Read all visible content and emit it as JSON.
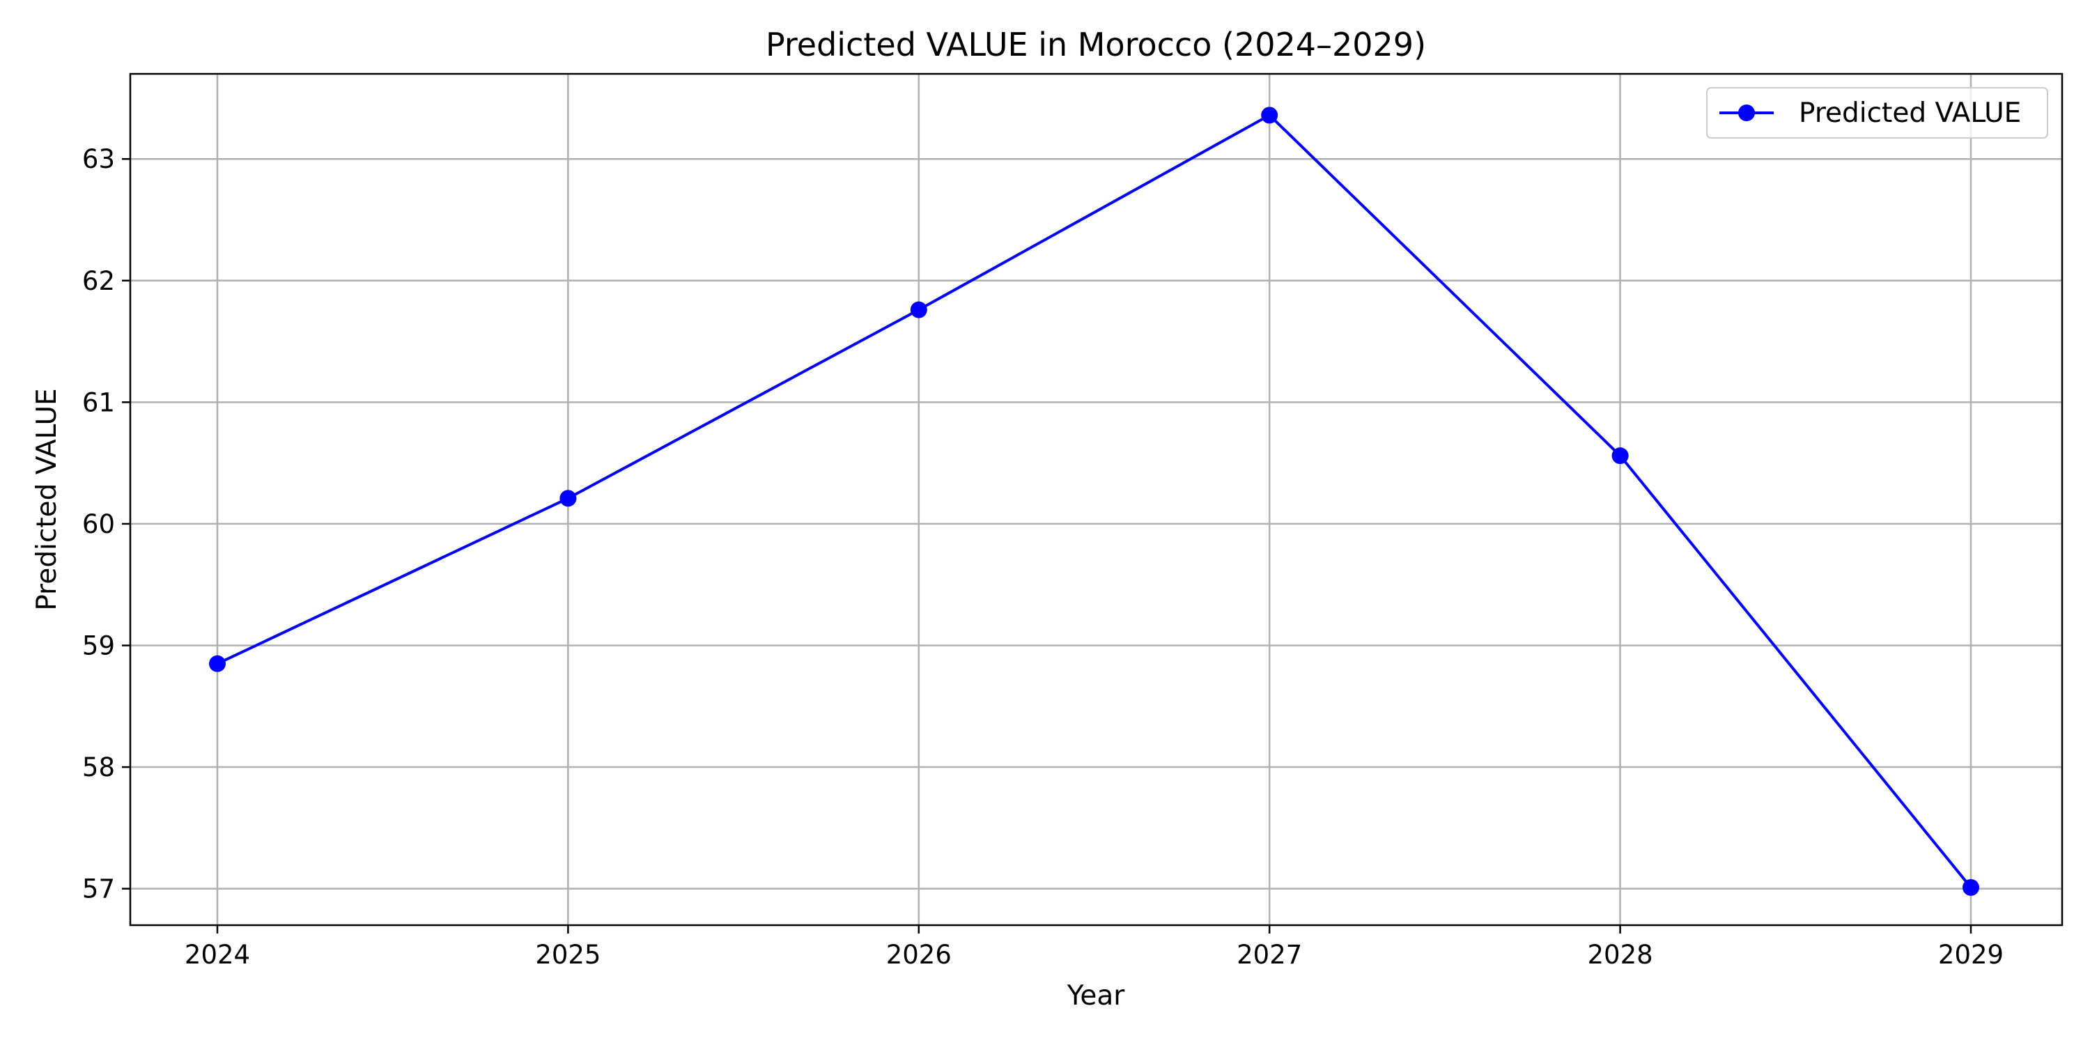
{
  "chart_data": {
    "type": "line",
    "title": "Predicted VALUE in Morocco (2024–2029)",
    "xlabel": "Year",
    "ylabel": "Predicted VALUE",
    "x": [
      "2024",
      "2025",
      "2026",
      "2027",
      "2028",
      "2029"
    ],
    "y_ticks": [
      "57",
      "58",
      "59",
      "60",
      "61",
      "62",
      "63"
    ],
    "ylim": [
      56.7,
      63.7
    ],
    "grid": true,
    "legend_position": "top-right",
    "series": [
      {
        "name": "Predicted VALUE",
        "color": "#0000ff",
        "marker": "circle",
        "values": [
          58.85,
          60.21,
          61.76,
          63.36,
          60.56,
          57.01
        ]
      }
    ]
  }
}
